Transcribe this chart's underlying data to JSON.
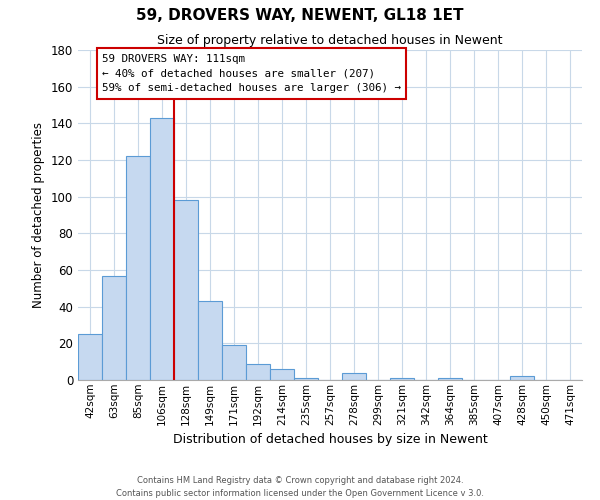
{
  "title": "59, DROVERS WAY, NEWENT, GL18 1ET",
  "subtitle": "Size of property relative to detached houses in Newent",
  "xlabel": "Distribution of detached houses by size in Newent",
  "ylabel": "Number of detached properties",
  "bar_labels": [
    "42sqm",
    "63sqm",
    "85sqm",
    "106sqm",
    "128sqm",
    "149sqm",
    "171sqm",
    "192sqm",
    "214sqm",
    "235sqm",
    "257sqm",
    "278sqm",
    "299sqm",
    "321sqm",
    "342sqm",
    "364sqm",
    "385sqm",
    "407sqm",
    "428sqm",
    "450sqm",
    "471sqm"
  ],
  "bar_heights": [
    25,
    57,
    122,
    143,
    98,
    43,
    19,
    9,
    6,
    1,
    0,
    4,
    0,
    1,
    0,
    1,
    0,
    0,
    2,
    0,
    0
  ],
  "bar_color": "#c6d9f0",
  "bar_edge_color": "#5b9bd5",
  "vline_x": 3.5,
  "vline_color": "#cc0000",
  "annotation_line1": "59 DROVERS WAY: 111sqm",
  "annotation_line2": "← 40% of detached houses are smaller (207)",
  "annotation_line3": "59% of semi-detached houses are larger (306) →",
  "ylim": [
    0,
    180
  ],
  "yticks": [
    0,
    20,
    40,
    60,
    80,
    100,
    120,
    140,
    160,
    180
  ],
  "footer1": "Contains HM Land Registry data © Crown copyright and database right 2024.",
  "footer2": "Contains public sector information licensed under the Open Government Licence v 3.0.",
  "background_color": "#ffffff",
  "grid_color": "#c8d8e8"
}
